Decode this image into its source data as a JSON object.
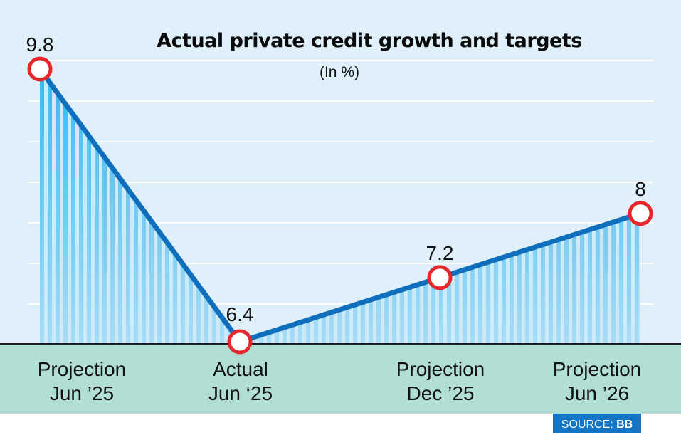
{
  "chart_data": {
    "type": "line",
    "title": "Actual private credit growth and targets",
    "subtitle": "(In %)",
    "categories": [
      [
        "Projection",
        "Jun ’25"
      ],
      [
        "Actual",
        "Jun ‘25"
      ],
      [
        "Projection",
        "Dec ’25"
      ],
      [
        "Projection",
        "Jun ’26"
      ]
    ],
    "values": [
      9.8,
      6.4,
      7.2,
      8
    ],
    "value_labels": [
      "9.8",
      "6.4",
      "7.2",
      "8"
    ],
    "ylim": [
      6.4,
      9.8
    ],
    "grid": true,
    "xlabel": "",
    "ylabel": "",
    "source": {
      "prefix": "SOURCE: ",
      "name": "BB"
    }
  },
  "colors": {
    "background": "#dff0fb",
    "grid": "#ffffff",
    "line": "#0f6fbd",
    "fill_dark": "#29b3ea",
    "fill_light": "#a9dcf6",
    "marker_stroke": "#e5262b",
    "marker_fill": "#ffffff",
    "axis_band": "#b2dfd5",
    "source_bg": "#1375c6"
  }
}
